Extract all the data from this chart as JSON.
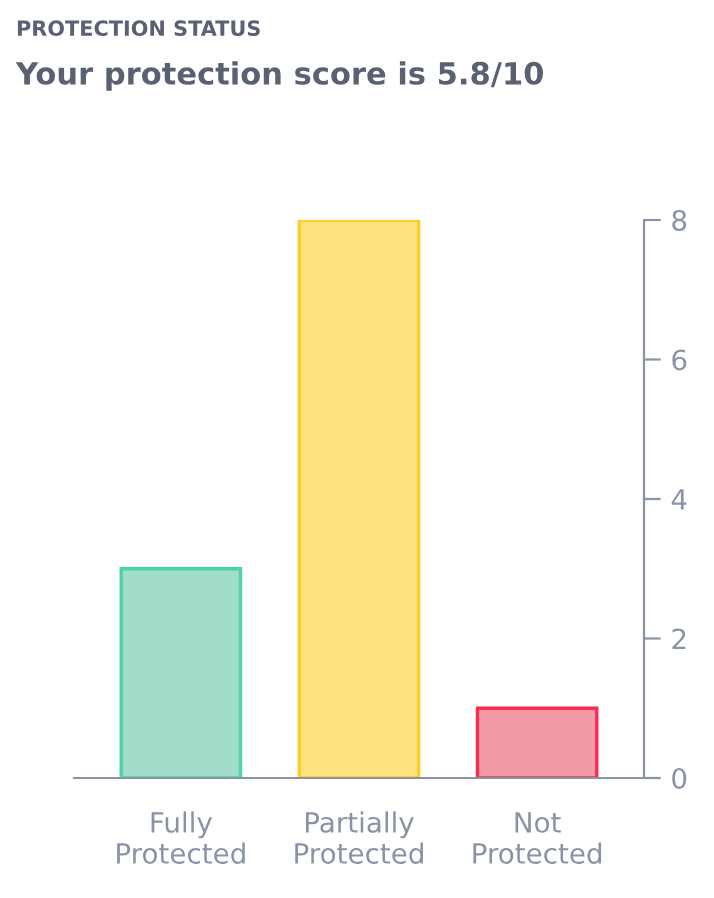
{
  "chart_data": {
    "type": "bar",
    "title": "PROTECTION STATUS",
    "subtitle": "Your protection score is 5.8/10",
    "categories": [
      "Fully\nProtected",
      "Partially\nProtected",
      "Not\nProtected"
    ],
    "values": [
      3,
      8,
      1
    ],
    "colors": [
      "#a0dcc8",
      "#ffe282",
      "#f09aa8"
    ],
    "ylim": [
      0,
      8
    ],
    "yticks": [
      0,
      2,
      4,
      6,
      8
    ],
    "grid": false,
    "legend": false
  }
}
